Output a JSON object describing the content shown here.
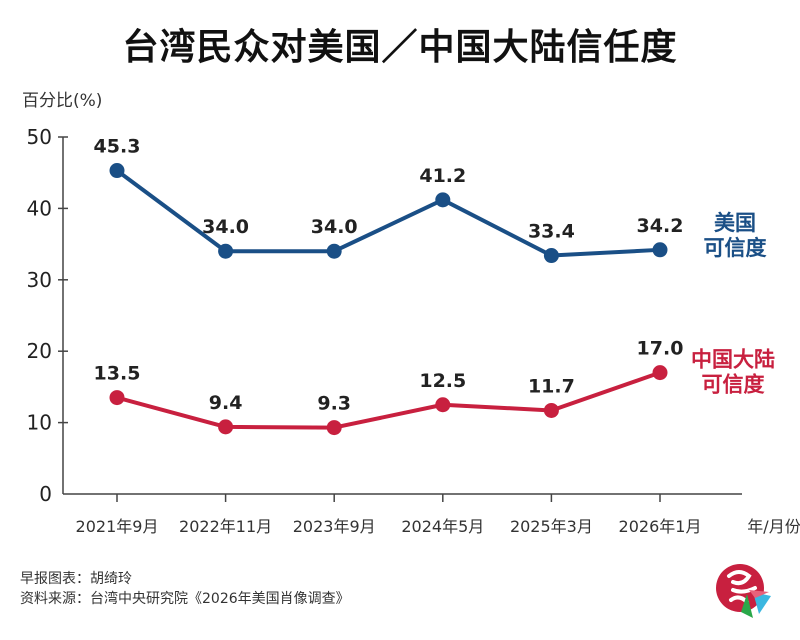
{
  "title": "台湾民众对美国／中国大陆信任度",
  "credits": {
    "chart_by": "早报图表：胡绮玲",
    "source": "资料来源：台湾中央研究院《2026年美国肖像调查》"
  },
  "logo": {
    "icon": "zaobao-logo"
  },
  "chart_data": {
    "type": "line",
    "title": "台湾民众对美国／中国大陆信任度",
    "ylabel": "百分比(%)",
    "xlabel": "年/月份",
    "ylim": [
      0,
      50
    ],
    "yticks": [
      0,
      10,
      20,
      30,
      40,
      50
    ],
    "grid": false,
    "categories": [
      "2021年9月",
      "2022年11月",
      "2023年9月",
      "2024年5月",
      "2025年3月",
      "2026年1月"
    ],
    "series": [
      {
        "name": "美国可信度",
        "label_lines": [
          "美国",
          "可信度"
        ],
        "color": "#1a4f86",
        "values": [
          45.3,
          34.0,
          34.0,
          41.2,
          33.4,
          34.2
        ],
        "labels": [
          "45.3",
          "34.0",
          "34.0",
          "41.2",
          "33.4",
          "34.2"
        ]
      },
      {
        "name": "中国大陆可信度",
        "label_lines": [
          "中国大陆",
          "可信度"
        ],
        "color": "#c8203f",
        "values": [
          13.5,
          9.4,
          9.3,
          12.5,
          11.7,
          17.0
        ],
        "labels": [
          "13.5",
          "9.4",
          "9.3",
          "12.5",
          "11.7",
          "17.0"
        ]
      }
    ]
  }
}
